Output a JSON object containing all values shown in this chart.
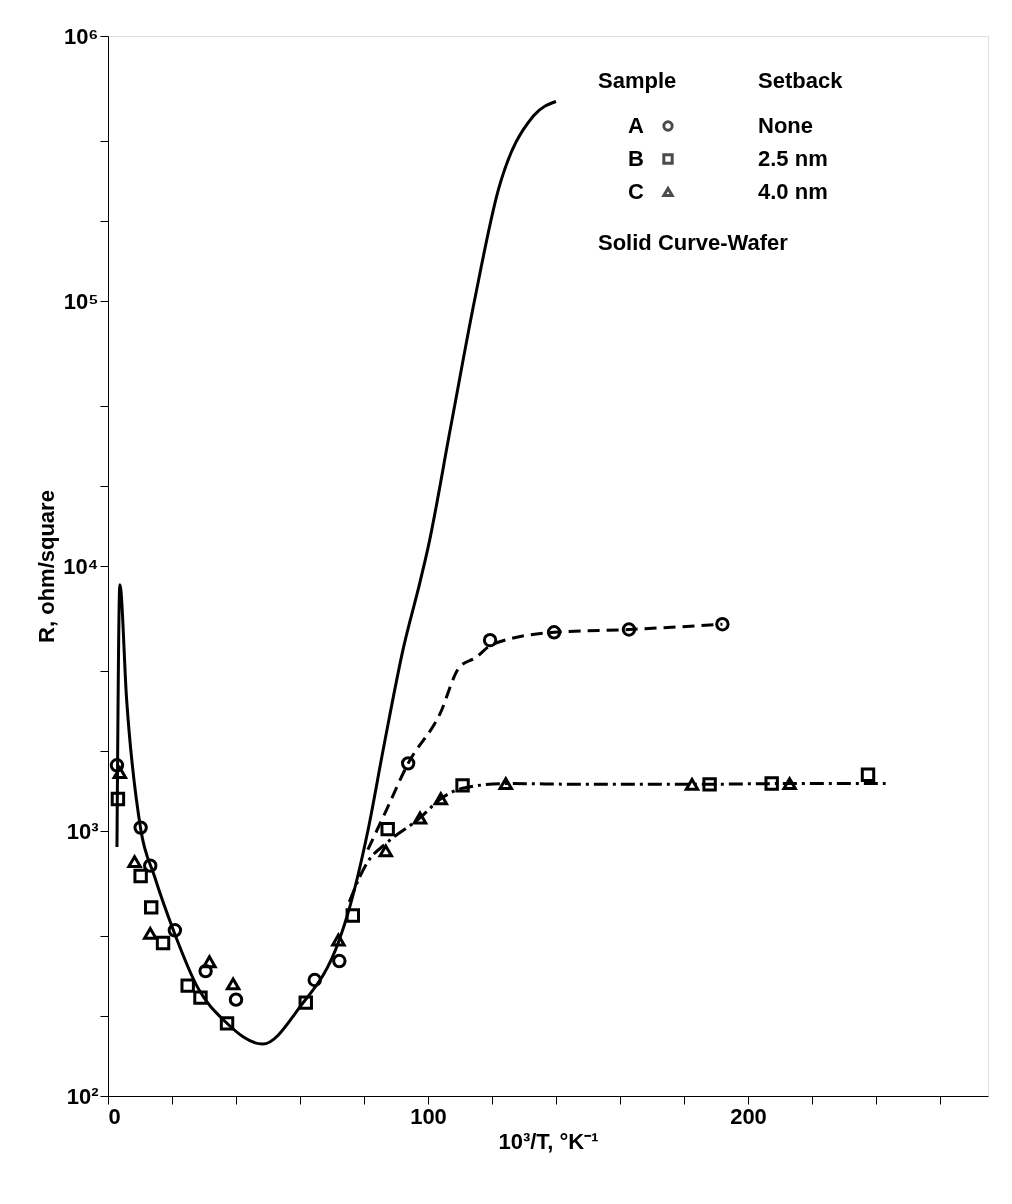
{
  "chart_data": {
    "type": "scatter",
    "xlabel": "10³/T, °K⁻¹",
    "ylabel": "R, ohm/square",
    "log": "y",
    "xlim": [
      0,
      275
    ],
    "ylim": [
      100,
      1000000
    ],
    "xticks": [
      0,
      {
        "value": 20,
        "label": null
      },
      {
        "value": 40,
        "label": null
      },
      {
        "value": 60,
        "label": null
      },
      {
        "value": 80,
        "label": null
      },
      100,
      {
        "value": 120,
        "label": null
      },
      {
        "value": 140,
        "label": null
      },
      {
        "value": 160,
        "label": null
      },
      {
        "value": 180,
        "label": null
      },
      200,
      {
        "value": 220,
        "label": null
      },
      {
        "value": 240,
        "label": null
      },
      {
        "value": 260,
        "label": null
      }
    ],
    "yticks": [
      {
        "value": 100,
        "label": "10²"
      },
      {
        "value": 200,
        "label": null
      },
      {
        "value": 400,
        "label": null
      },
      {
        "value": 1000,
        "label": "10³"
      },
      {
        "value": 2000,
        "label": null
      },
      {
        "value": 4000,
        "label": null
      },
      {
        "value": 10000,
        "label": "10⁴"
      },
      {
        "value": 20000,
        "label": null
      },
      {
        "value": 40000,
        "label": null
      },
      {
        "value": 100000,
        "label": "10⁵"
      },
      {
        "value": 200000,
        "label": null
      },
      {
        "value": 400000,
        "label": null
      },
      {
        "value": 1000000,
        "label": "10⁶"
      }
    ],
    "grid": false,
    "legend": "top right",
    "legend_title": "Sample",
    "annotations": [
      "Setback",
      "None",
      "2.5 nm",
      "4.0 nm",
      "Solid Curve-Wafer"
    ],
    "series": [
      {
        "type": "line",
        "color": "#000000",
        "line_style": "solid",
        "marker": "none",
        "x": [
          2.8,
          3.7,
          5.8,
          10.2,
          14.5,
          20.6,
          28,
          36.6,
          48.3,
          60,
          72.3,
          75,
          81.2,
          86.2,
          92.3,
          97.5,
          100,
          107,
          114.5,
          122,
          133,
          140
        ],
        "values": [
          870,
          8500,
          3160,
          1020,
          676,
          417,
          257,
          191,
          157,
          217,
          389,
          490,
          1000,
          2090,
          4900,
          8700,
          11700,
          33000,
          100000,
          263000,
          500000,
          566000
        ]
      },
      {
        "type": "line",
        "color": "#000000",
        "line_style": "dashed",
        "marker": "none",
        "x": [
          81.2,
          87,
          93.8,
          103.7,
          109.8,
          115,
          120,
          139.4,
          162.8,
          192
        ],
        "values": [
          850,
          1200,
          1800,
          2760,
          4150,
          4520,
          5050,
          5620,
          5760,
          6030
        ]
      },
      {
        "type": "line",
        "color": "#000000",
        "line_style": "dashdot",
        "marker": "none",
        "x": [
          75.4,
          81,
          87,
          97.5,
          104,
          110.8,
          124.3,
          150,
          182.5,
          213,
          243
        ],
        "values": [
          540,
          760,
          900,
          1120,
          1324,
          1450,
          1510,
          1500,
          1500,
          1510,
          1510
        ]
      },
      {
        "name": "A",
        "color": "#000000",
        "marker": "circle",
        "x": [
          2.8,
          10.2,
          13.2,
          20.9,
          30.5,
          40,
          64.6,
          72.3,
          93.8,
          119.4,
          139.4,
          162.8,
          192
        ],
        "values": [
          1770,
          1030,
          740,
          422,
          296,
          231,
          274,
          323,
          1800,
          5250,
          5620,
          5760,
          6030
        ]
      },
      {
        "name": "B",
        "color": "#000000",
        "marker": "square",
        "x": [
          3.1,
          10.2,
          13.5,
          17.2,
          24.9,
          28.9,
          37.2,
          61.8,
          76.5,
          87.4,
          110.8,
          188,
          207.4,
          237.5
        ],
        "values": [
          1320,
          676,
          515,
          378,
          261,
          235,
          188,
          225,
          480,
          1016,
          1486,
          1500,
          1510,
          1630
        ]
      },
      {
        "name": "C",
        "color": "#000000",
        "marker": "triangle",
        "x": [
          3.7,
          8.3,
          13.2,
          31.7,
          39.1,
          72,
          86.8,
          97.5,
          104,
          124.3,
          182.5,
          213
        ],
        "values": [
          1660,
          766,
          411,
          321,
          265,
          388,
          841,
          1120,
          1324,
          1510,
          1500,
          1510
        ]
      }
    ]
  }
}
